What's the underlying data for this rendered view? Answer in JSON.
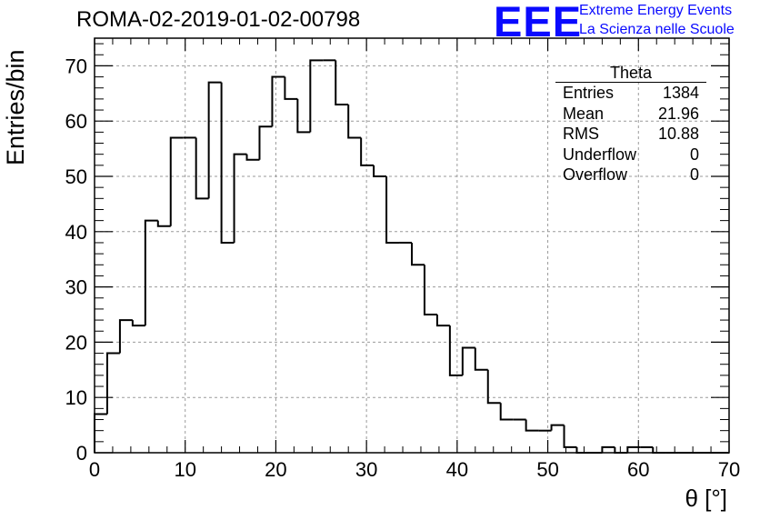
{
  "title": "ROMA-02-2019-01-02-00798",
  "logo": {
    "text": "EEE",
    "line1": "Extreme Energy Events",
    "line2": "La Scienza nelle Scuole",
    "color": "#0a0aff"
  },
  "stats_box": {
    "name": "Theta",
    "rows": [
      {
        "label": "Entries",
        "value": "1384"
      },
      {
        "label": "Mean",
        "value": "21.96"
      },
      {
        "label": "RMS",
        "value": "10.88"
      },
      {
        "label": "Underflow",
        "value": "0"
      },
      {
        "label": "Overflow",
        "value": "0"
      }
    ]
  },
  "chart_data": {
    "type": "histogram",
    "title": "ROMA-02-2019-01-02-00798",
    "xlabel": "θ [°]",
    "ylabel": "Entries/bin",
    "xlim": [
      0,
      70
    ],
    "ylim": [
      0,
      75
    ],
    "grid": true,
    "bin_width": 1.4,
    "bin_edges_start": 0,
    "values": [
      7,
      18,
      24,
      23,
      42,
      41,
      57,
      57,
      46,
      67,
      38,
      54,
      53,
      59,
      68,
      64,
      58,
      71,
      71,
      63,
      57,
      52,
      50,
      38,
      38,
      34,
      25,
      23,
      14,
      19,
      15,
      9,
      6,
      6,
      4,
      4,
      5,
      1,
      0,
      0,
      1,
      0,
      1,
      1,
      0,
      0,
      0,
      0,
      0,
      0
    ],
    "x_ticks": [
      "0",
      "10",
      "20",
      "30",
      "40",
      "50",
      "60",
      "70"
    ],
    "y_ticks": [
      "0",
      "10",
      "20",
      "30",
      "40",
      "50",
      "60",
      "70"
    ]
  }
}
